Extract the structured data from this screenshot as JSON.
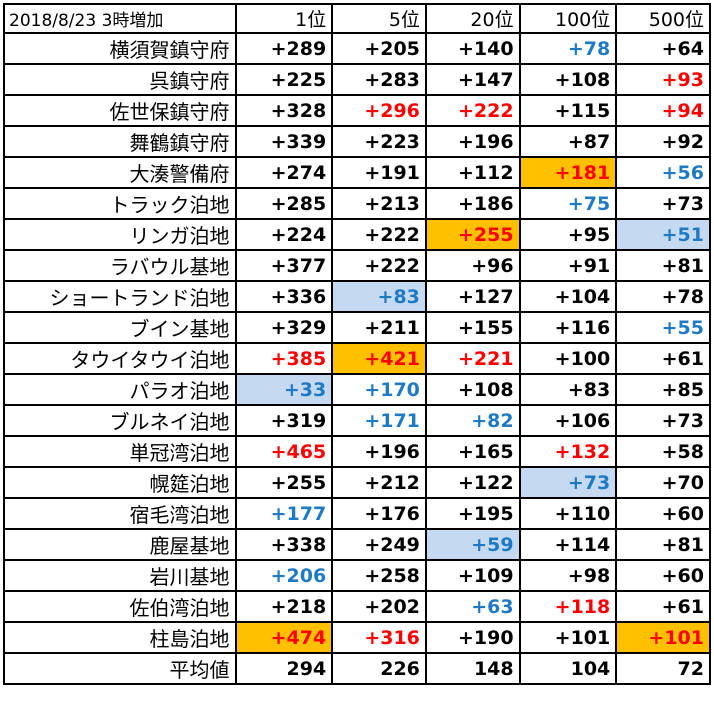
{
  "header": {
    "corner": "2018/8/23 3時増加",
    "columns": [
      "1位",
      "5位",
      "20位",
      "100位",
      "500位"
    ]
  },
  "colors": {
    "red": "#ff0000",
    "blue": "#1f7ac4",
    "highlight_orange": "#ffc000",
    "highlight_blue": "#c5d9f1"
  },
  "rows": [
    {
      "name": "横須賀鎮守府",
      "cells": [
        {
          "v": "+289"
        },
        {
          "v": "+205"
        },
        {
          "v": "+140"
        },
        {
          "v": "+78",
          "c": "blue"
        },
        {
          "v": "+64"
        }
      ]
    },
    {
      "name": "呉鎮守府",
      "cells": [
        {
          "v": "+225"
        },
        {
          "v": "+283"
        },
        {
          "v": "+147"
        },
        {
          "v": "+108"
        },
        {
          "v": "+93",
          "c": "red"
        }
      ]
    },
    {
      "name": "佐世保鎮守府",
      "cells": [
        {
          "v": "+328"
        },
        {
          "v": "+296",
          "c": "red"
        },
        {
          "v": "+222",
          "c": "red"
        },
        {
          "v": "+115"
        },
        {
          "v": "+94",
          "c": "red"
        }
      ]
    },
    {
      "name": "舞鶴鎮守府",
      "cells": [
        {
          "v": "+339"
        },
        {
          "v": "+223"
        },
        {
          "v": "+196"
        },
        {
          "v": "+87"
        },
        {
          "v": "+92"
        }
      ]
    },
    {
      "name": "大湊警備府",
      "cells": [
        {
          "v": "+274"
        },
        {
          "v": "+191"
        },
        {
          "v": "+112"
        },
        {
          "v": "+181",
          "c": "red",
          "bg": "orange"
        },
        {
          "v": "+56",
          "c": "blue"
        }
      ]
    },
    {
      "name": "トラック泊地",
      "cells": [
        {
          "v": "+285"
        },
        {
          "v": "+213"
        },
        {
          "v": "+186"
        },
        {
          "v": "+75",
          "c": "blue"
        },
        {
          "v": "+73"
        }
      ]
    },
    {
      "name": "リンガ泊地",
      "cells": [
        {
          "v": "+224"
        },
        {
          "v": "+222"
        },
        {
          "v": "+255",
          "c": "red",
          "bg": "orange"
        },
        {
          "v": "+95"
        },
        {
          "v": "+51",
          "c": "blue",
          "bg": "blue"
        }
      ]
    },
    {
      "name": "ラバウル基地",
      "cells": [
        {
          "v": "+377"
        },
        {
          "v": "+222"
        },
        {
          "v": "+96"
        },
        {
          "v": "+91"
        },
        {
          "v": "+81"
        }
      ]
    },
    {
      "name": "ショートランド泊地",
      "cells": [
        {
          "v": "+336"
        },
        {
          "v": "+83",
          "c": "blue",
          "bg": "blue"
        },
        {
          "v": "+127"
        },
        {
          "v": "+104"
        },
        {
          "v": "+78"
        }
      ]
    },
    {
      "name": "ブイン基地",
      "cells": [
        {
          "v": "+329"
        },
        {
          "v": "+211"
        },
        {
          "v": "+155"
        },
        {
          "v": "+116"
        },
        {
          "v": "+55",
          "c": "blue"
        }
      ]
    },
    {
      "name": "タウイタウイ泊地",
      "cells": [
        {
          "v": "+385",
          "c": "red"
        },
        {
          "v": "+421",
          "c": "red",
          "bg": "orange"
        },
        {
          "v": "+221",
          "c": "red"
        },
        {
          "v": "+100"
        },
        {
          "v": "+61"
        }
      ]
    },
    {
      "name": "パラオ泊地",
      "cells": [
        {
          "v": "+33",
          "c": "blue",
          "bg": "blue"
        },
        {
          "v": "+170",
          "c": "blue"
        },
        {
          "v": "+108"
        },
        {
          "v": "+83"
        },
        {
          "v": "+85"
        }
      ]
    },
    {
      "name": "ブルネイ泊地",
      "cells": [
        {
          "v": "+319"
        },
        {
          "v": "+171",
          "c": "blue"
        },
        {
          "v": "+82",
          "c": "blue"
        },
        {
          "v": "+106"
        },
        {
          "v": "+73"
        }
      ]
    },
    {
      "name": "単冠湾泊地",
      "cells": [
        {
          "v": "+465",
          "c": "red"
        },
        {
          "v": "+196"
        },
        {
          "v": "+165"
        },
        {
          "v": "+132",
          "c": "red"
        },
        {
          "v": "+58"
        }
      ]
    },
    {
      "name": "幌筵泊地",
      "cells": [
        {
          "v": "+255"
        },
        {
          "v": "+212"
        },
        {
          "v": "+122"
        },
        {
          "v": "+73",
          "c": "blue",
          "bg": "blue"
        },
        {
          "v": "+70"
        }
      ]
    },
    {
      "name": "宿毛湾泊地",
      "cells": [
        {
          "v": "+177",
          "c": "blue"
        },
        {
          "v": "+176"
        },
        {
          "v": "+195"
        },
        {
          "v": "+110"
        },
        {
          "v": "+60"
        }
      ]
    },
    {
      "name": "鹿屋基地",
      "cells": [
        {
          "v": "+338"
        },
        {
          "v": "+249"
        },
        {
          "v": "+59",
          "c": "blue",
          "bg": "blue"
        },
        {
          "v": "+114"
        },
        {
          "v": "+81"
        }
      ]
    },
    {
      "name": "岩川基地",
      "cells": [
        {
          "v": "+206",
          "c": "blue"
        },
        {
          "v": "+258"
        },
        {
          "v": "+109"
        },
        {
          "v": "+98"
        },
        {
          "v": "+60"
        }
      ]
    },
    {
      "name": "佐伯湾泊地",
      "cells": [
        {
          "v": "+218"
        },
        {
          "v": "+202"
        },
        {
          "v": "+63",
          "c": "blue"
        },
        {
          "v": "+118",
          "c": "red"
        },
        {
          "v": "+61"
        }
      ]
    },
    {
      "name": "柱島泊地",
      "cells": [
        {
          "v": "+474",
          "c": "red",
          "bg": "orange"
        },
        {
          "v": "+316",
          "c": "red"
        },
        {
          "v": "+190"
        },
        {
          "v": "+101"
        },
        {
          "v": "+101",
          "c": "red",
          "bg": "orange"
        }
      ]
    }
  ],
  "average": {
    "label": "平均値",
    "values": [
      "294",
      "226",
      "148",
      "104",
      "72"
    ]
  }
}
